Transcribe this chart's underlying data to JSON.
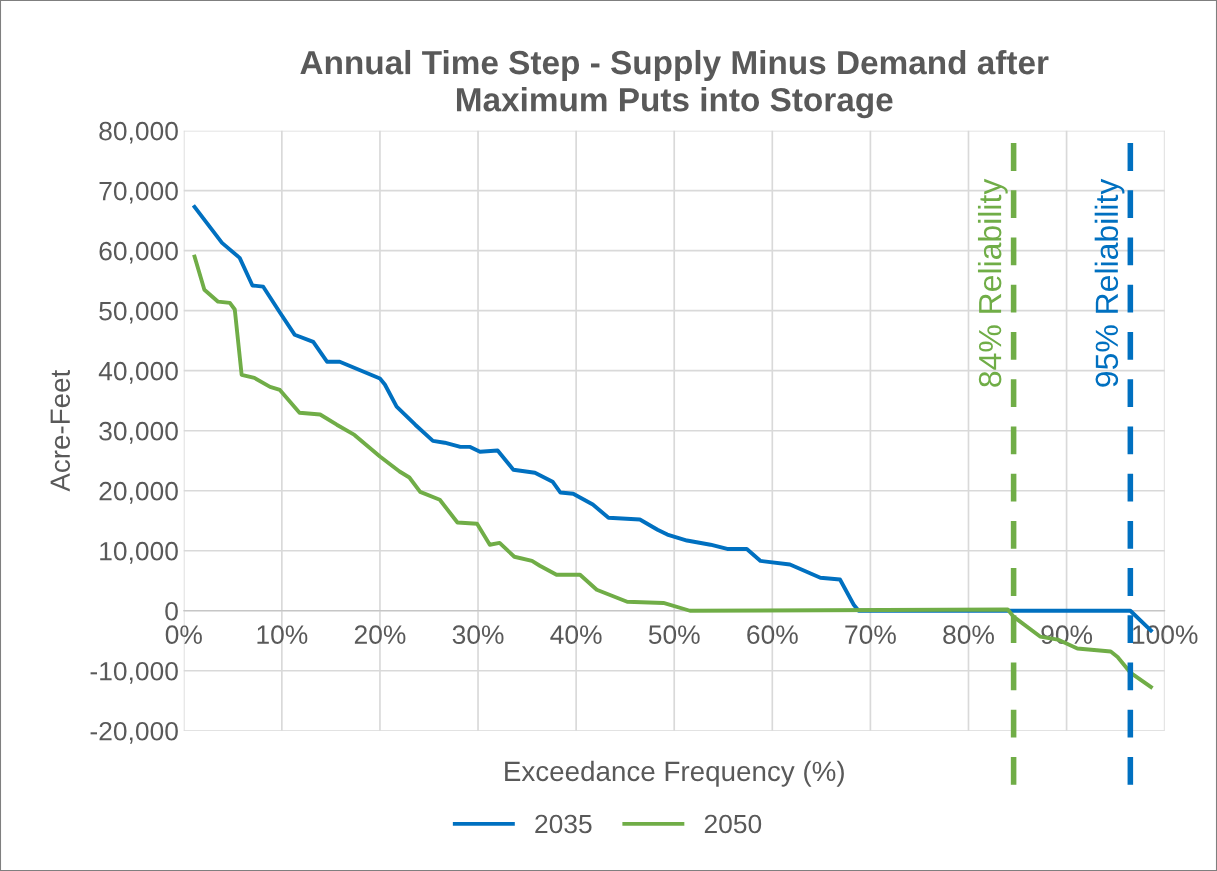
{
  "chart_data": {
    "type": "line",
    "title": "Annual Time Step - Supply Minus Demand after\nMaximum Puts into Storage",
    "xlabel": "Exceedance Frequency (%)",
    "ylabel": "Acre-Feet",
    "xlim": [
      0,
      100
    ],
    "xticks": [
      {
        "value": 0,
        "label": "0%"
      },
      {
        "value": 10,
        "label": "10%"
      },
      {
        "value": 20,
        "label": "20%"
      },
      {
        "value": 30,
        "label": "30%"
      },
      {
        "value": 40,
        "label": "40%"
      },
      {
        "value": 50,
        "label": "50%"
      },
      {
        "value": 60,
        "label": "60%"
      },
      {
        "value": 70,
        "label": "70%"
      },
      {
        "value": 80,
        "label": "80%"
      },
      {
        "value": 90,
        "label": "90%"
      },
      {
        "value": 100,
        "label": "100%"
      }
    ],
    "ylim": [
      -20000,
      80000
    ],
    "yticks": [
      {
        "value": -20000,
        "label": "-20,000"
      },
      {
        "value": -10000,
        "label": "-10,000"
      },
      {
        "value": 0,
        "label": "0"
      },
      {
        "value": 10000,
        "label": "10,000"
      },
      {
        "value": 20000,
        "label": "20,000"
      },
      {
        "value": 30000,
        "label": "30,000"
      },
      {
        "value": 40000,
        "label": "40,000"
      },
      {
        "value": 50000,
        "label": "50,000"
      },
      {
        "value": 60000,
        "label": "60,000"
      },
      {
        "value": 70000,
        "label": "70,000"
      },
      {
        "value": 80000,
        "label": "80,000"
      }
    ],
    "series": [
      {
        "name": "2035",
        "color": "#0070c0",
        "x": [
          1.1,
          3.9,
          5.7,
          7.0,
          8.1,
          9.8,
          11.3,
          13.2,
          14.6,
          15.9,
          20.0,
          20.5,
          21.7,
          23.6,
          25.4,
          26.6,
          28.2,
          29.2,
          30.2,
          32.0,
          33.6,
          35.8,
          37.6,
          38.4,
          39.7,
          41.7,
          43.3,
          46.5,
          48.3,
          49.3,
          51.3,
          53.7,
          55.4,
          57.4,
          58.8,
          61.8,
          64.9,
          66.9,
          68.3,
          68.8,
          96.5,
          98.6
        ],
        "values": [
          67300,
          61300,
          58800,
          54200,
          54000,
          49700,
          46000,
          44800,
          41500,
          41500,
          38700,
          37700,
          34000,
          31000,
          28300,
          28000,
          27300,
          27300,
          26500,
          26700,
          23500,
          23000,
          21500,
          19700,
          19500,
          17700,
          15500,
          15200,
          13500,
          12700,
          11700,
          11000,
          10300,
          10300,
          8300,
          7700,
          5500,
          5200,
          1000,
          0,
          0,
          -3300
        ]
      },
      {
        "name": "2050",
        "color": "#70ad47",
        "x": [
          1.1,
          2.1,
          3.5,
          4.7,
          5.2,
          5.9,
          7.2,
          8.8,
          9.8,
          11.8,
          13.9,
          15.6,
          17.4,
          20.0,
          22.0,
          23.0,
          24.1,
          26.1,
          27.9,
          29.9,
          31.2,
          32.2,
          33.7,
          35.5,
          36.3,
          38.0,
          40.4,
          42.1,
          45.2,
          48.9,
          51.6,
          84.0,
          84.6,
          87.3,
          89.1,
          91.1,
          94.5,
          95.2,
          96.5,
          98.6
        ],
        "values": [
          59000,
          53500,
          51500,
          51300,
          50200,
          39300,
          38800,
          37300,
          36800,
          33000,
          32700,
          31000,
          29300,
          25700,
          23200,
          22200,
          19800,
          18500,
          14700,
          14500,
          11000,
          11300,
          9000,
          8300,
          7500,
          6000,
          6000,
          3500,
          1500,
          1300,
          0,
          200,
          -1000,
          -4300,
          -4800,
          -6300,
          -6800,
          -7700,
          -10300,
          -12700
        ]
      }
    ],
    "ref_lines": [
      {
        "axis": "x",
        "value": 84.6,
        "label": "84% Reliability",
        "color": "#70ad47",
        "line_style": "dashed"
      },
      {
        "axis": "x",
        "value": 96.5,
        "label": "95% Reliability",
        "color": "#0070c0",
        "line_style": "dashed"
      }
    ],
    "grid": true,
    "legend": "bottom",
    "marker": "none",
    "line_style": "solid"
  }
}
